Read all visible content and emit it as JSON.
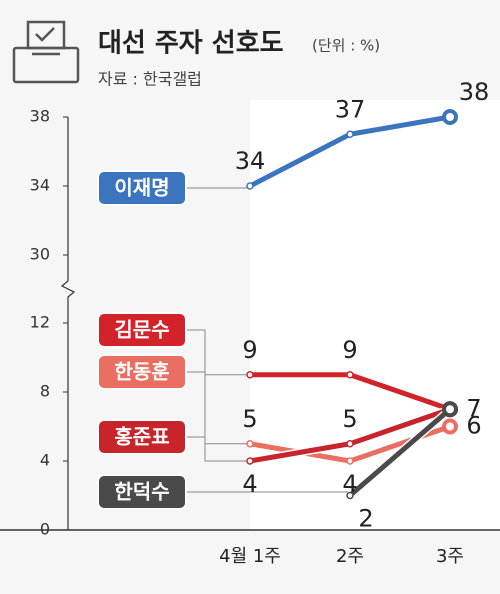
{
  "chart_data": {
    "type": "line",
    "title": "대선 주자 선호도",
    "subtitle": "(단위 : %)",
    "source": "자료 : 한국갤럽",
    "categories": [
      "4월 1주",
      "2주",
      "3주"
    ],
    "series": [
      {
        "name": "이재명",
        "color": "#3b74bf",
        "values": [
          34,
          37,
          38
        ]
      },
      {
        "name": "김문수",
        "color": "#d3232a",
        "values": [
          9,
          9,
          7
        ]
      },
      {
        "name": "한동훈",
        "color": "#e96f62",
        "values": [
          5,
          4,
          6
        ]
      },
      {
        "name": "홍준표",
        "color": "#c8242b",
        "values": [
          4,
          5,
          7
        ]
      },
      {
        "name": "한덕수",
        "color": "#4a4a4a",
        "values": [
          null,
          2,
          7
        ]
      }
    ],
    "ylim": [
      0,
      38
    ],
    "ybreak": [
      12,
      30
    ],
    "yticks": [
      0,
      4,
      8,
      12,
      30,
      34,
      38
    ]
  }
}
